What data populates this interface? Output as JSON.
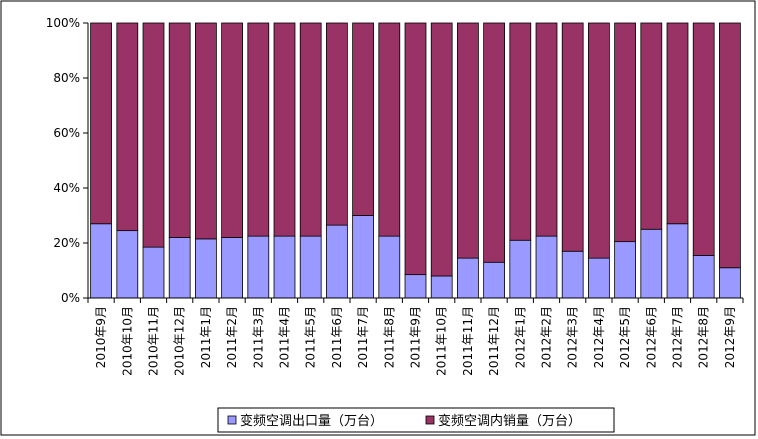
{
  "chart_data": {
    "type": "bar",
    "stacked": true,
    "percent_stacked": true,
    "categories": [
      "2010年9月",
      "2010年10月",
      "2010年11月",
      "2010年12月",
      "2011年1月",
      "2011年2月",
      "2011年3月",
      "2011年4月",
      "2011年5月",
      "2011年6月",
      "2011年7月",
      "2011年8月",
      "2011年9月",
      "2011年10月",
      "2011年11月",
      "2011年12月",
      "2012年1月",
      "2012年2月",
      "2012年3月",
      "2012年4月",
      "2012年5月",
      "2012年6月",
      "2012年7月",
      "2012年8月",
      "2012年9月"
    ],
    "series": [
      {
        "name": "变频空调出口量（万台）",
        "color": "#9999ff",
        "values": [
          27,
          24.5,
          18.5,
          22,
          21.5,
          22,
          22.5,
          22.5,
          22.5,
          26.5,
          30,
          22.5,
          8.5,
          8,
          14.5,
          13,
          21,
          22.5,
          17,
          14.5,
          20.5,
          25,
          27,
          15.5,
          11
        ]
      },
      {
        "name": "变频空调内销量（万台）",
        "color": "#993366",
        "values": [
          73,
          75.5,
          81.5,
          78,
          78.5,
          78,
          77.5,
          77.5,
          77.5,
          73.5,
          70,
          77.5,
          91.5,
          92,
          85.5,
          87,
          79,
          77.5,
          83,
          85.5,
          79.5,
          75,
          73,
          84.5,
          89
        ]
      }
    ],
    "yticks": [
      "0%",
      "20%",
      "40%",
      "60%",
      "80%",
      "100%"
    ],
    "ylim": [
      0,
      100
    ],
    "grid": false,
    "legend": "bottom"
  }
}
